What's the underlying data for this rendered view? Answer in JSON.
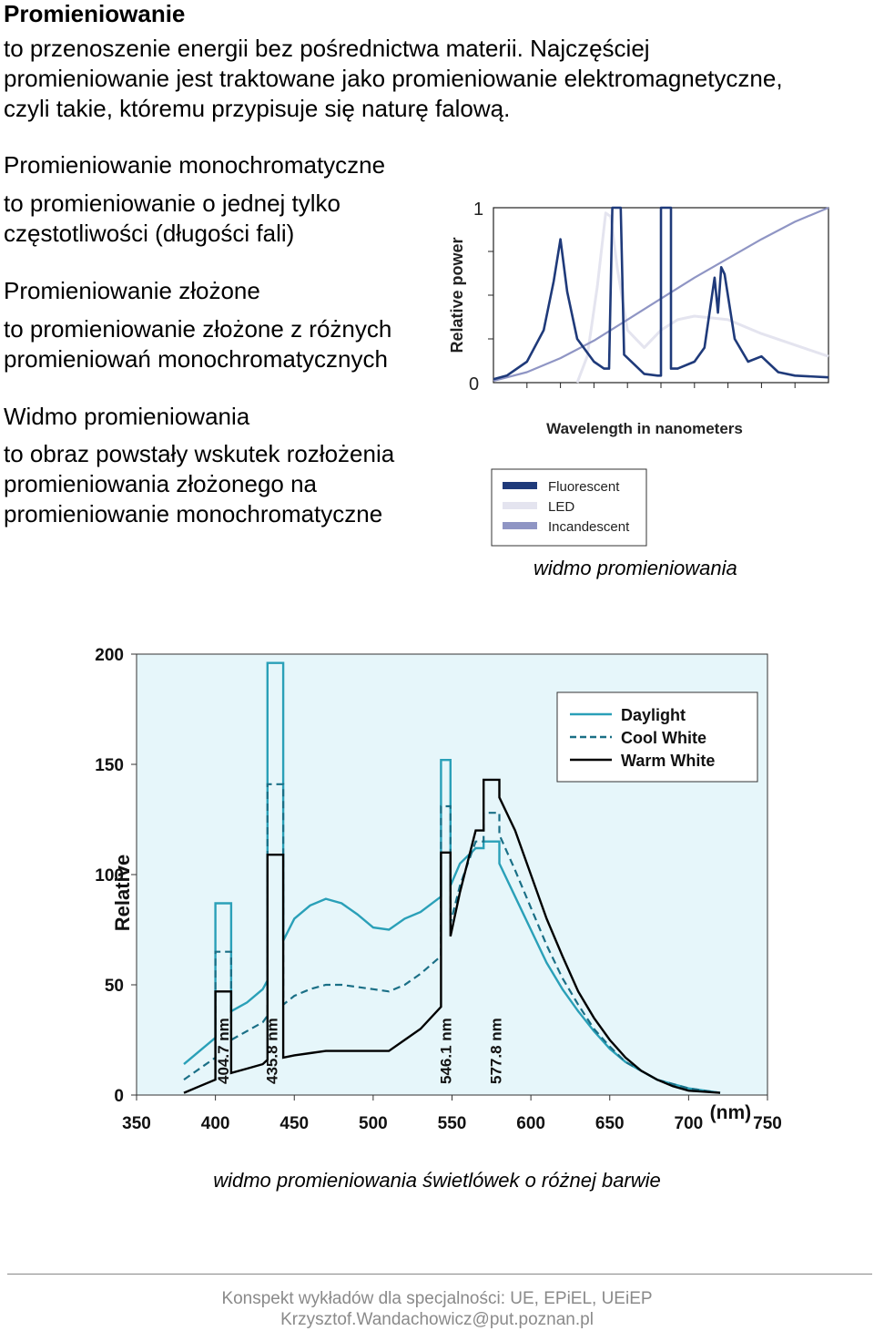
{
  "section1": {
    "title": "Promieniowanie",
    "lines": [
      "to przenoszenie energii bez pośrednictwa materii. Najczęściej",
      "promieniowanie jest traktowane jako promieniowanie elektromagnetyczne,",
      "czyli takie, któremu przypisuje się naturę falową."
    ]
  },
  "section2": {
    "title": "Promieniowanie monochromatyczne",
    "lines": [
      "to promieniowanie o jednej tylko",
      "częstotliwości (długości fali)"
    ]
  },
  "section3": {
    "title": "Promieniowanie złożone",
    "lines": [
      "to promieniowanie złożone z różnych",
      "promieniowań monochromatycznych"
    ]
  },
  "section4": {
    "title": "Widmo promieniowania",
    "lines": [
      "to obraz powstały wskutek rozłożenia",
      "promieniowania złożonego na",
      "promieniowanie monochromatyczne"
    ]
  },
  "chart1_caption": "widmo promieniowania",
  "chart2_caption": "widmo promieniowania świetlówek o różnej barwie",
  "footer": {
    "line1": "Konspekt wykładów dla specjalności: UE, EPiEL, UEiEP",
    "line2": "Krzysztof.Wandachowicz@put.poznan.pl"
  },
  "chart_data": [
    {
      "type": "line",
      "xlabel": "Wavelength in nanometers",
      "ylabel": "Relative power",
      "y_tick_labels": [
        "0",
        "1"
      ],
      "ylim": [
        0,
        1
      ],
      "grid": false,
      "legend_position": "bottom-left",
      "colors": {
        "Fluorescent": "#1f3a7a",
        "LED": "#e4e4ef",
        "Incandescent": "#8f95c4"
      },
      "series": [
        {
          "name": "Fluorescent",
          "x": [
            0,
            0.04,
            0.1,
            0.15,
            0.18,
            0.2,
            0.22,
            0.25,
            0.3,
            0.33,
            0.345,
            0.355,
            0.38,
            0.39,
            0.45,
            0.49,
            0.5,
            0.5,
            0.53,
            0.53,
            0.55,
            0.6,
            0.63,
            0.66,
            0.67,
            0.68,
            0.69,
            0.72,
            0.76,
            0.8,
            0.85,
            0.9,
            1.0
          ],
          "values": [
            0.02,
            0.04,
            0.12,
            0.3,
            0.58,
            0.82,
            0.52,
            0.25,
            0.12,
            0.08,
            0.08,
            1.0,
            1.0,
            0.16,
            0.05,
            0.04,
            0.04,
            1.0,
            1.0,
            0.08,
            0.08,
            0.12,
            0.2,
            0.6,
            0.4,
            0.66,
            0.62,
            0.25,
            0.12,
            0.15,
            0.06,
            0.04,
            0.03
          ]
        },
        {
          "name": "LED",
          "x": [
            0.25,
            0.28,
            0.31,
            0.335,
            0.35,
            0.37,
            0.4,
            0.45,
            0.5,
            0.55,
            0.6,
            0.7,
            0.8,
            1.0
          ],
          "values": [
            0.0,
            0.15,
            0.55,
            0.97,
            0.95,
            0.65,
            0.3,
            0.2,
            0.3,
            0.36,
            0.38,
            0.36,
            0.28,
            0.15
          ]
        },
        {
          "name": "Incandescent",
          "x": [
            0,
            0.1,
            0.2,
            0.3,
            0.4,
            0.5,
            0.6,
            0.7,
            0.8,
            0.9,
            1.0
          ],
          "values": [
            0.01,
            0.06,
            0.14,
            0.24,
            0.36,
            0.48,
            0.6,
            0.71,
            0.82,
            0.92,
            1.0
          ]
        }
      ]
    },
    {
      "type": "line",
      "xlabel": "(nm)",
      "ylabel": "Relative",
      "xlim": [
        350,
        750
      ],
      "ylim": [
        0,
        200
      ],
      "x_ticks": [
        350,
        400,
        450,
        500,
        550,
        600,
        650,
        700,
        750
      ],
      "y_ticks": [
        0,
        50,
        100,
        150,
        200
      ],
      "grid": false,
      "background": "#e6f6fa",
      "legend_position": "top-right",
      "annotations": [
        "404.7 nm",
        "435.8 nm",
        "546.1 nm",
        "577.8 nm"
      ],
      "annotation_x": [
        404.7,
        435.8,
        546.1,
        577.8
      ],
      "colors": {
        "Daylight": "#2aa0b8",
        "Cool White": "#1a6f86",
        "Warm White": "#000000"
      },
      "series": [
        {
          "name": "Daylight",
          "style": "solid",
          "x": [
            380,
            390,
            400,
            400,
            410,
            410,
            420,
            430,
            433,
            433,
            443,
            443,
            450,
            460,
            470,
            480,
            490,
            500,
            510,
            520,
            530,
            543,
            543,
            549,
            549,
            555,
            565,
            570,
            570,
            580,
            580,
            590,
            600,
            610,
            620,
            630,
            640,
            650,
            660,
            670,
            680,
            690,
            700,
            720
          ],
          "values": [
            14,
            20,
            26,
            87,
            87,
            38,
            42,
            48,
            52,
            196,
            196,
            70,
            80,
            86,
            89,
            87,
            82,
            76,
            75,
            80,
            83,
            90,
            152,
            152,
            95,
            105,
            112,
            112,
            115,
            115,
            105,
            90,
            75,
            60,
            48,
            38,
            29,
            21,
            15,
            11,
            7,
            5,
            3,
            1
          ]
        },
        {
          "name": "Cool White",
          "style": "dashed",
          "x": [
            380,
            390,
            400,
            400,
            410,
            410,
            420,
            430,
            433,
            433,
            443,
            443,
            450,
            460,
            470,
            480,
            490,
            500,
            510,
            520,
            530,
            543,
            543,
            549,
            549,
            555,
            565,
            570,
            570,
            580,
            580,
            590,
            600,
            610,
            620,
            630,
            640,
            650,
            660,
            670,
            680,
            690,
            700,
            720
          ],
          "values": [
            7,
            12,
            17,
            65,
            65,
            25,
            29,
            33,
            36,
            141,
            141,
            41,
            45,
            48,
            50,
            50,
            49,
            48,
            47,
            50,
            55,
            63,
            131,
            131,
            78,
            95,
            115,
            115,
            128,
            128,
            118,
            102,
            85,
            68,
            53,
            41,
            30,
            22,
            15,
            11,
            7,
            5,
            3,
            1
          ]
        },
        {
          "name": "Warm White",
          "style": "solid",
          "x": [
            380,
            390,
            400,
            400,
            410,
            410,
            420,
            430,
            433,
            433,
            443,
            443,
            450,
            460,
            470,
            480,
            490,
            500,
            510,
            520,
            530,
            543,
            543,
            549,
            549,
            555,
            565,
            570,
            570,
            580,
            580,
            590,
            600,
            610,
            620,
            630,
            640,
            650,
            660,
            670,
            680,
            690,
            700,
            720
          ],
          "values": [
            1,
            4,
            7,
            47,
            47,
            10,
            12,
            14,
            16,
            109,
            109,
            17,
            18,
            19,
            20,
            20,
            20,
            20,
            20,
            25,
            30,
            40,
            110,
            110,
            72,
            92,
            120,
            120,
            143,
            143,
            135,
            120,
            100,
            80,
            63,
            47,
            35,
            25,
            17,
            11,
            7,
            4,
            2,
            1
          ]
        }
      ]
    }
  ]
}
